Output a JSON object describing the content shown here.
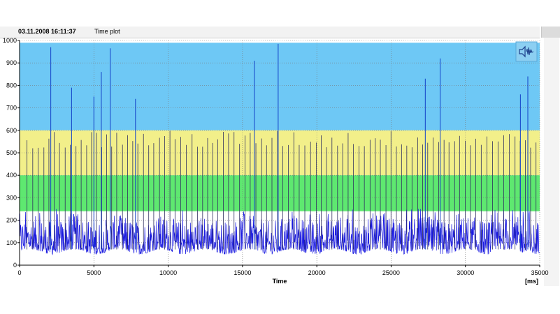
{
  "window": {
    "timestamp": "03.11.2008 16:11:37",
    "title": "Time plot"
  },
  "colors": {
    "band_blue": "#6ec8f5",
    "band_yellow": "#f2ef8a",
    "band_green": "#5ee870",
    "signal": "#1a1ae0",
    "spike": "#1240c8"
  },
  "chart_data": {
    "type": "line",
    "title": "",
    "xlabel": "Time",
    "xunit": "[ms]",
    "ylabel": "",
    "xlim": [
      0,
      35000
    ],
    "ylim": [
      0,
      1000
    ],
    "x_ticks": [
      0,
      5000,
      10000,
      15000,
      20000,
      25000,
      30000,
      35000
    ],
    "y_ticks": [
      0,
      100,
      200,
      300,
      400,
      500,
      600,
      700,
      800,
      900,
      1000
    ],
    "grid": true,
    "bands": [
      {
        "from": 600,
        "to": 990,
        "color": "blue"
      },
      {
        "from": 400,
        "to": 600,
        "color": "yellow"
      },
      {
        "from": 240,
        "to": 400,
        "color": "green"
      }
    ],
    "baseline_range": [
      40,
      250
    ],
    "spikes": [
      {
        "x": 2100,
        "y": 970
      },
      {
        "x": 3500,
        "y": 790
      },
      {
        "x": 5000,
        "y": 750
      },
      {
        "x": 5500,
        "y": 860
      },
      {
        "x": 6100,
        "y": 965
      },
      {
        "x": 7800,
        "y": 740
      },
      {
        "x": 15800,
        "y": 910
      },
      {
        "x": 17400,
        "y": 985
      },
      {
        "x": 28300,
        "y": 920
      },
      {
        "x": 27300,
        "y": 830
      },
      {
        "x": 34200,
        "y": 840
      },
      {
        "x": 33700,
        "y": 760
      }
    ]
  },
  "icons": {
    "sound": "speaker-waveform-icon"
  }
}
